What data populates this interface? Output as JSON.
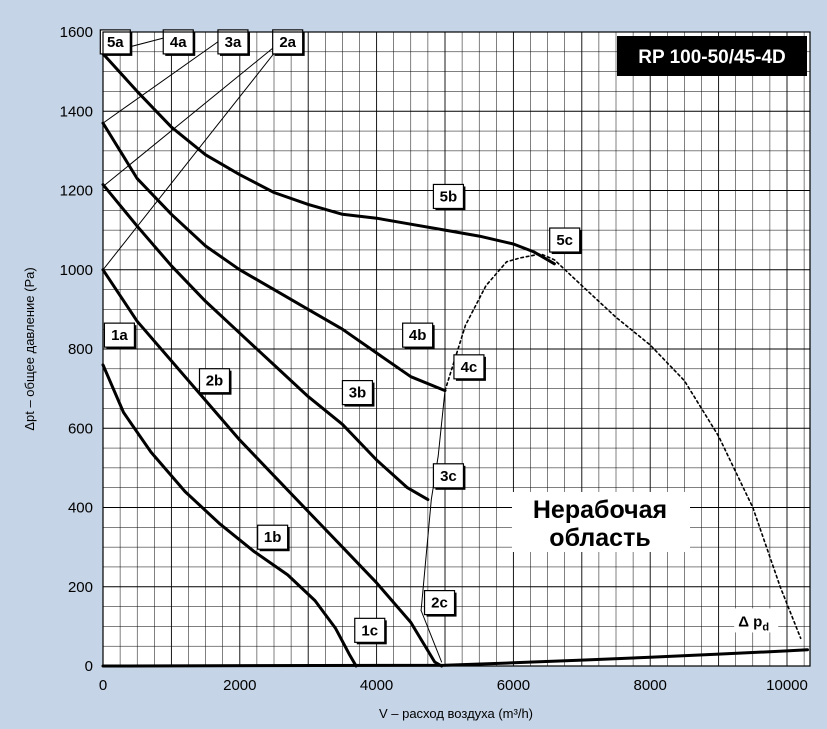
{
  "chart_data": {
    "type": "line",
    "title": "RP 100-50/45-4D",
    "xlabel": "V – расход воздуха (m³/h)",
    "ylabel": "Δpt – общее давление (Pa)",
    "xlim": [
      0,
      10500
    ],
    "ylim": [
      0,
      1600
    ],
    "xticks": [
      0,
      2000,
      4000,
      6000,
      8000,
      10000
    ],
    "yticks": [
      0,
      200,
      400,
      600,
      800,
      1000,
      1200,
      1400,
      1600
    ],
    "xtick_labels": [
      "0",
      "2000",
      "4000",
      "6000",
      "8000",
      "10000"
    ],
    "ytick_labels": [
      "0",
      "200",
      "400",
      "600",
      "800",
      "1000",
      "1200",
      "1400",
      "1600"
    ],
    "grid": true,
    "zone_label_lines": [
      "Нерабочая",
      "область"
    ],
    "curves": [
      {
        "name": "1b",
        "style": "solid",
        "points": [
          [
            0,
            760
          ],
          [
            300,
            640
          ],
          [
            700,
            540
          ],
          [
            1200,
            440
          ],
          [
            1700,
            360
          ],
          [
            2200,
            290
          ],
          [
            2700,
            230
          ],
          [
            3100,
            165
          ],
          [
            3400,
            95
          ],
          [
            3600,
            30
          ],
          [
            3700,
            0
          ]
        ]
      },
      {
        "name": "2b",
        "style": "solid",
        "points": [
          [
            0,
            1000
          ],
          [
            500,
            870
          ],
          [
            1000,
            770
          ],
          [
            1500,
            670
          ],
          [
            2000,
            570
          ],
          [
            2500,
            480
          ],
          [
            3000,
            390
          ],
          [
            3500,
            300
          ],
          [
            4000,
            210
          ],
          [
            4500,
            110
          ],
          [
            4850,
            10
          ],
          [
            4950,
            0
          ]
        ]
      },
      {
        "name": "3b",
        "style": "solid",
        "points": [
          [
            0,
            1215
          ],
          [
            500,
            1110
          ],
          [
            1000,
            1010
          ],
          [
            1500,
            920
          ],
          [
            2000,
            840
          ],
          [
            2500,
            760
          ],
          [
            3000,
            680
          ],
          [
            3500,
            610
          ],
          [
            4000,
            520
          ],
          [
            4450,
            450
          ],
          [
            4750,
            420
          ]
        ]
      },
      {
        "name": "4b",
        "style": "solid",
        "points": [
          [
            0,
            1370
          ],
          [
            500,
            1230
          ],
          [
            1000,
            1140
          ],
          [
            1500,
            1060
          ],
          [
            2000,
            1000
          ],
          [
            2500,
            950
          ],
          [
            3000,
            900
          ],
          [
            3500,
            850
          ],
          [
            4000,
            790
          ],
          [
            4500,
            730
          ],
          [
            5000,
            695
          ]
        ]
      },
      {
        "name": "5b",
        "style": "solid",
        "points": [
          [
            0,
            1545
          ],
          [
            500,
            1450
          ],
          [
            1000,
            1360
          ],
          [
            1500,
            1290
          ],
          [
            2000,
            1240
          ],
          [
            2500,
            1195
          ],
          [
            3000,
            1165
          ],
          [
            3500,
            1140
          ],
          [
            4000,
            1130
          ],
          [
            4500,
            1115
          ],
          [
            5000,
            1100
          ],
          [
            5500,
            1085
          ],
          [
            6000,
            1065
          ],
          [
            6300,
            1045
          ],
          [
            6500,
            1025
          ],
          [
            6600,
            1015
          ]
        ]
      },
      {
        "name": "1a",
        "style": "thin",
        "points": [
          [
            0,
            1000
          ],
          [
            2700,
            1590
          ]
        ]
      },
      {
        "name": "2a",
        "style": "thin",
        "points": [
          [
            0,
            1210
          ],
          [
            2700,
            1590
          ]
        ]
      },
      {
        "name": "3a",
        "style": "thin",
        "points": [
          [
            0,
            1370
          ],
          [
            1800,
            1590
          ]
        ]
      },
      {
        "name": "4a",
        "style": "thin",
        "points": [
          [
            0,
            1545
          ],
          [
            1000,
            1590
          ]
        ]
      },
      {
        "name": "c-boundary",
        "style": "thin",
        "points": [
          [
            4650,
            140
          ],
          [
            4800,
            420
          ],
          [
            4900,
            530
          ],
          [
            5000,
            695
          ]
        ]
      },
      {
        "name": "c-boundary-dashed",
        "style": "dotted",
        "points": [
          [
            5000,
            695
          ],
          [
            5300,
            860
          ],
          [
            5600,
            960
          ],
          [
            5900,
            1020
          ],
          [
            6100,
            1030
          ],
          [
            6400,
            1040
          ],
          [
            6600,
            1025
          ],
          [
            7000,
            960
          ],
          [
            7500,
            880
          ],
          [
            8000,
            810
          ],
          [
            8500,
            720
          ],
          [
            9000,
            580
          ],
          [
            9500,
            400
          ],
          [
            9900,
            200
          ],
          [
            10200,
            70
          ]
        ]
      },
      {
        "name": "2c-line",
        "style": "thin",
        "points": [
          [
            4650,
            140
          ],
          [
            4950,
            10
          ]
        ]
      },
      {
        "name": "Δpd",
        "style": "solid",
        "points": [
          [
            0,
            0
          ],
          [
            5000,
            2
          ],
          [
            6000,
            8
          ],
          [
            7000,
            15
          ],
          [
            8000,
            22
          ],
          [
            9000,
            30
          ],
          [
            10000,
            38
          ],
          [
            10300,
            41
          ]
        ]
      }
    ],
    "labels": [
      {
        "text": "5a",
        "x": 180,
        "y": 1575
      },
      {
        "text": "4a",
        "x": 1100,
        "y": 1575
      },
      {
        "text": "3a",
        "x": 1900,
        "y": 1575
      },
      {
        "text": "2a",
        "x": 2700,
        "y": 1575
      },
      {
        "text": "5b",
        "x": 5050,
        "y": 1185
      },
      {
        "text": "5c",
        "x": 6750,
        "y": 1075
      },
      {
        "text": "4b",
        "x": 4600,
        "y": 835
      },
      {
        "text": "4c",
        "x": 5350,
        "y": 755
      },
      {
        "text": "3b",
        "x": 3720,
        "y": 690
      },
      {
        "text": "3c",
        "x": 5050,
        "y": 480
      },
      {
        "text": "2b",
        "x": 1630,
        "y": 720
      },
      {
        "text": "2c",
        "x": 4920,
        "y": 160
      },
      {
        "text": "1a",
        "x": 240,
        "y": 835
      },
      {
        "text": "1b",
        "x": 2480,
        "y": 325
      },
      {
        "text": "1c",
        "x": 3900,
        "y": 90
      }
    ],
    "dpd_label": {
      "text": "Δ p",
      "sub": "d",
      "x": 9550,
      "y": 110
    }
  }
}
